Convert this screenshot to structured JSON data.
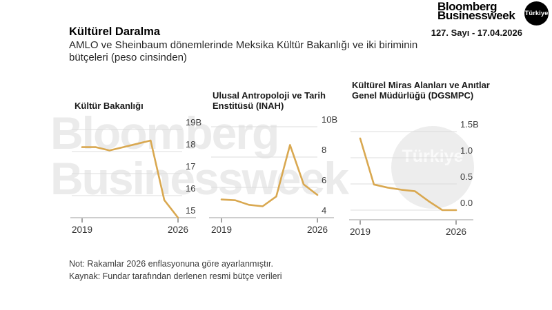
{
  "header": {
    "logo_line1": "Bloomberg",
    "logo_line2": "Businessweek",
    "badge": "Türkiye",
    "issue": "127. Sayı - 17.04.2026"
  },
  "title_block": {
    "title": "Kültürel Daralma",
    "subtitle": "AMLO ve Sheinbaum dönemlerinde Meksika Kültür Bakanlığı ve iki biriminin bütçeleri (peso cinsinden)"
  },
  "watermark": {
    "line1": "Bloomberg",
    "line2": "Businessweek",
    "badge": "Türkiye"
  },
  "footer": {
    "note": "Not: Rakamlar 2026 enflasyonuna göre ayarlanmıştır.",
    "source": "Kaynak: Fundar tarafından derlenen resmi bütçe verileri"
  },
  "theme": {
    "line_color": "#D9A850",
    "grid_color": "#DCDCDC",
    "axis_color": "#B0B0B0",
    "tick_color": "#7A7A7A",
    "label_color": "#3A3A3A",
    "watermark_color": "#EBEBEB",
    "watermark_circle_color": "#EDEDED",
    "badge_bg": "#000000"
  },
  "chart_data": [
    {
      "type": "line",
      "title": "Kültür Bakanlığı",
      "categories": [
        "2019",
        "2020",
        "2021",
        "2022",
        "2023",
        "2024",
        "2025",
        "2026"
      ],
      "values": [
        18.2,
        18.2,
        18.05,
        18.2,
        18.35,
        18.5,
        15.8,
        15.0
      ],
      "x_tick_labels": [
        "2019",
        "2026"
      ],
      "y_tick_values": [
        19,
        18,
        17,
        16,
        15
      ],
      "y_tick_labels": [
        "19B",
        "18",
        "17",
        "16",
        "15"
      ],
      "ylim": [
        15,
        19
      ],
      "xlabel": "",
      "ylabel": "",
      "grid": true,
      "legend": false
    },
    {
      "type": "line",
      "title": "Ulusal Antropoloji ve Tarih Enstitüsü (INAH)",
      "categories": [
        "2019",
        "2020",
        "2021",
        "2022",
        "2023",
        "2024",
        "2025",
        "2026"
      ],
      "values": [
        5.2,
        5.15,
        4.85,
        4.75,
        5.4,
        8.8,
        6.2,
        5.5
      ],
      "x_tick_labels": [
        "2019",
        "2026"
      ],
      "y_tick_values": [
        10,
        8,
        6,
        4
      ],
      "y_tick_labels": [
        "10B",
        "8",
        "6",
        "4"
      ],
      "ylim": [
        4,
        10
      ],
      "xlabel": "",
      "ylabel": "",
      "grid": true,
      "legend": false
    },
    {
      "type": "line",
      "title": "Kültürel Miras Alanları ve Anıtlar Genel Müdürlüğü (DGSMPC)",
      "categories": [
        "2019",
        "2020",
        "2021",
        "2022",
        "2023",
        "2024",
        "2025",
        "2026"
      ],
      "values": [
        1.37,
        0.49,
        0.43,
        0.39,
        0.36,
        0.17,
        0.0,
        0.0
      ],
      "x_tick_labels": [
        "2019",
        "2026"
      ],
      "y_tick_values": [
        1.5,
        1.0,
        0.5,
        0.0
      ],
      "y_tick_labels": [
        "1.5B",
        "1.0",
        "0.5",
        "0.0"
      ],
      "ylim": [
        0,
        1.5
      ],
      "xlabel": "",
      "ylabel": "",
      "grid": true,
      "legend": false
    }
  ]
}
